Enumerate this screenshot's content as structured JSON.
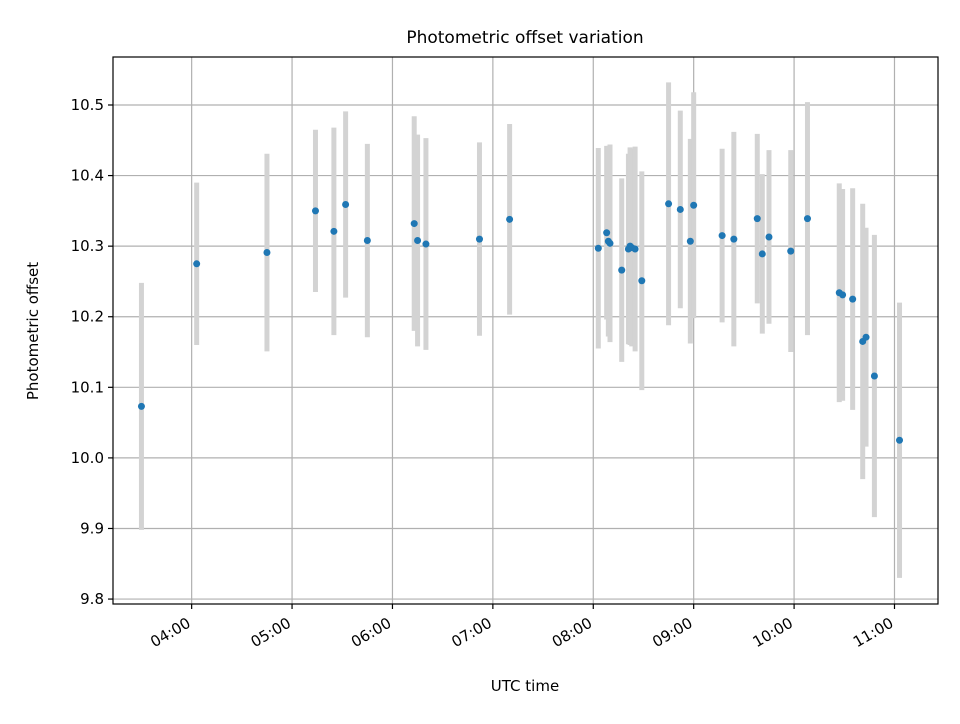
{
  "chart_data": {
    "type": "scatter",
    "title": "Photometric offset variation",
    "xlabel": "UTC time",
    "ylabel": "Photometric offset",
    "x_ticks": [
      "04:00",
      "05:00",
      "06:00",
      "07:00",
      "08:00",
      "09:00",
      "10:00",
      "11:00"
    ],
    "x_tick_values": [
      240,
      300,
      360,
      420,
      480,
      540,
      600,
      660
    ],
    "y_ticks": [
      "9.8",
      "9.9",
      "10.0",
      "10.1",
      "10.2",
      "10.3",
      "10.4",
      "10.5"
    ],
    "y_tick_values": [
      9.8,
      9.9,
      10.0,
      10.1,
      10.2,
      10.3,
      10.4,
      10.5
    ],
    "xlim": [
      "03:13",
      "11:26"
    ],
    "ylim": [
      9.793,
      10.568
    ],
    "grid": true,
    "colors": {
      "point": "#1f77b4",
      "errorbar": "#d3d3d3",
      "grid": "#b0b0b0"
    },
    "series": [
      {
        "x": [
          "03:30",
          "04:03",
          "04:45",
          "05:14",
          "05:25",
          "05:32",
          "05:45",
          "06:13",
          "06:15",
          "06:20",
          "06:52",
          "07:10",
          "08:03",
          "08:08",
          "08:09",
          "08:10",
          "08:17",
          "08:21",
          "08:22",
          "08:23",
          "08:25",
          "08:29",
          "08:45",
          "08:52",
          "08:58",
          "09:00",
          "09:17",
          "09:24",
          "09:38",
          "09:41",
          "09:45",
          "09:58",
          "10:08",
          "10:27",
          "10:29",
          "10:35",
          "10:41",
          "10:43",
          "10:48",
          "11:03"
        ],
        "y": [
          10.073,
          10.275,
          10.291,
          10.35,
          10.321,
          10.359,
          10.308,
          10.332,
          10.308,
          10.303,
          10.31,
          10.338,
          10.297,
          10.319,
          10.307,
          10.304,
          10.266,
          10.296,
          10.3,
          10.298,
          10.296,
          10.251,
          10.36,
          10.352,
          10.307,
          10.358,
          10.315,
          10.31,
          10.339,
          10.289,
          10.313,
          10.293,
          10.339,
          10.234,
          10.231,
          10.225,
          10.165,
          10.171,
          10.116,
          10.025
        ],
        "yerr": [
          0.175,
          0.115,
          0.14,
          0.115,
          0.147,
          0.132,
          0.137,
          0.152,
          0.15,
          0.15,
          0.137,
          0.135,
          0.142,
          0.123,
          0.135,
          0.14,
          0.13,
          0.135,
          0.14,
          0.14,
          0.145,
          0.155,
          0.172,
          0.14,
          0.145,
          0.16,
          0.123,
          0.152,
          0.12,
          0.113,
          0.123,
          0.143,
          0.165,
          0.155,
          0.15,
          0.157,
          0.195,
          0.155,
          0.2,
          0.195
        ]
      }
    ]
  }
}
